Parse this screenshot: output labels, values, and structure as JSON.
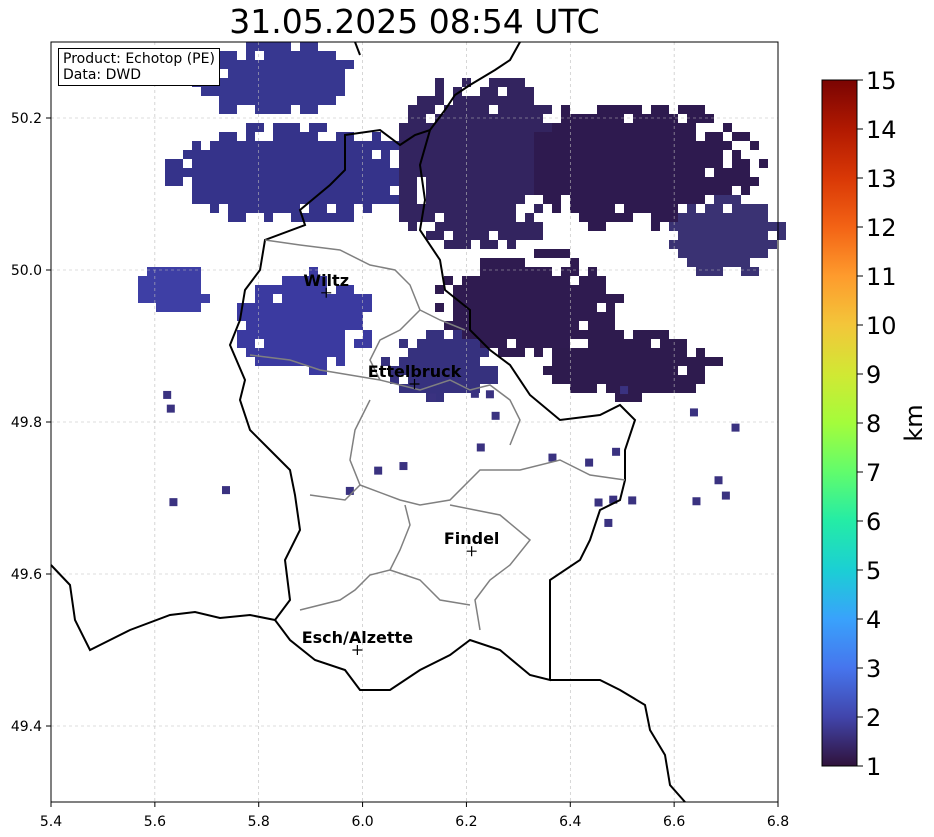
{
  "title": "31.05.2025 08:54 UTC",
  "info": {
    "product": "Product: Echotop (PE)",
    "data": "Data: DWD"
  },
  "map": {
    "lon_range": [
      5.4,
      6.8
    ],
    "lat_range": [
      49.3,
      50.3
    ],
    "x_ticks": [
      "5.4",
      "5.6",
      "5.8",
      "6.0",
      "6.2",
      "6.4",
      "6.6",
      "6.8"
    ],
    "y_ticks": [
      "49.4",
      "49.6",
      "49.8",
      "50.0",
      "50.2"
    ],
    "grid": true,
    "cities": [
      {
        "name": "Wiltz",
        "lon": 5.93,
        "lat": 49.97
      },
      {
        "name": "Ettelbruck",
        "lon": 6.1,
        "lat": 49.85
      },
      {
        "name": "Findel",
        "lon": 6.21,
        "lat": 49.63
      },
      {
        "name": "Esch/Alzette",
        "lon": 5.99,
        "lat": 49.5
      }
    ]
  },
  "colorbar": {
    "label": "km",
    "range": [
      1,
      15
    ],
    "ticks": [
      "1",
      "2",
      "3",
      "4",
      "5",
      "6",
      "7",
      "8",
      "9",
      "10",
      "11",
      "12",
      "13",
      "14",
      "15"
    ],
    "colormap": "turbo",
    "colors": [
      "#30123b",
      "#4145ab",
      "#4675ed",
      "#39a2fc",
      "#1bcfd4",
      "#24eca6",
      "#61fc6c",
      "#a4fc3b",
      "#d1e834",
      "#f3c63a",
      "#fe9b2d",
      "#f36315",
      "#d93806",
      "#b11901",
      "#7a0402"
    ]
  },
  "colors": {
    "border": "#000000",
    "canton_border": "#808080",
    "grid": "#bbbbbb"
  }
}
